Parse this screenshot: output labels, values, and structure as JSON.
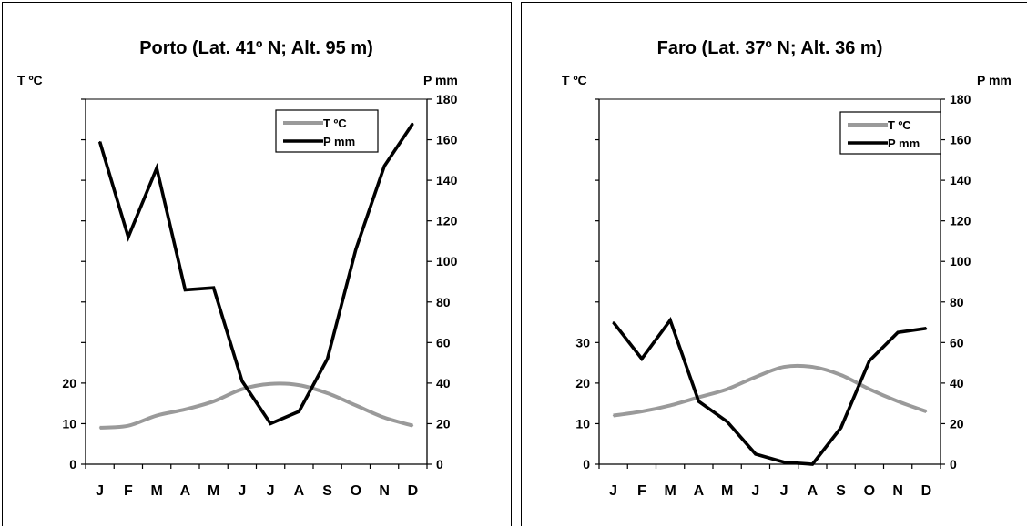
{
  "chart_data": [
    {
      "type": "line",
      "title": "Porto (Lat. 41º N; Alt. 95 m)",
      "left_axis_label": "T ºC",
      "right_axis_label": "P mm",
      "categories": [
        "J",
        "F",
        "M",
        "A",
        "M",
        "J",
        "J",
        "A",
        "S",
        "O",
        "N",
        "D"
      ],
      "left_ticks": [
        "0",
        "10",
        "20"
      ],
      "right_ticks": [
        "0",
        "20",
        "40",
        "60",
        "80",
        "100",
        "120",
        "140",
        "160",
        "180"
      ],
      "ylim_left": [
        0,
        90
      ],
      "ylim_right": [
        0,
        180
      ],
      "legend_position": "top-right",
      "series": [
        {
          "name": "T ºC",
          "axis": "left",
          "color": "#9a9a9a",
          "values": [
            9,
            9.5,
            12,
            13.5,
            15.5,
            18.5,
            19.8,
            19.5,
            17.5,
            14.5,
            11.5,
            9.5
          ]
        },
        {
          "name": "P mm",
          "axis": "right",
          "color": "#000000",
          "values": [
            159,
            112,
            146,
            86,
            87,
            41,
            20,
            26,
            52,
            106,
            147,
            168
          ]
        }
      ]
    },
    {
      "type": "line",
      "title": "Faro (Lat. 37º N; Alt. 36 m)",
      "left_axis_label": "T ºC",
      "right_axis_label": "P mm",
      "categories": [
        "J",
        "F",
        "M",
        "A",
        "M",
        "J",
        "J",
        "A",
        "S",
        "O",
        "N",
        "D"
      ],
      "left_ticks": [
        "0",
        "10",
        "20",
        "30"
      ],
      "right_ticks": [
        "0",
        "20",
        "40",
        "60",
        "80",
        "100",
        "120",
        "140",
        "160",
        "180"
      ],
      "ylim_left": [
        0,
        90
      ],
      "ylim_right": [
        0,
        180
      ],
      "legend_position": "top-right",
      "series": [
        {
          "name": "T ºC",
          "axis": "left",
          "color": "#9a9a9a",
          "values": [
            12,
            13,
            14.5,
            16.5,
            18.5,
            21.5,
            24,
            24,
            22,
            18.5,
            15.5,
            13
          ]
        },
        {
          "name": "P mm",
          "axis": "right",
          "color": "#000000",
          "values": [
            70,
            52,
            71,
            31,
            21,
            5,
            1,
            0,
            18,
            51,
            65,
            67
          ]
        }
      ]
    }
  ]
}
